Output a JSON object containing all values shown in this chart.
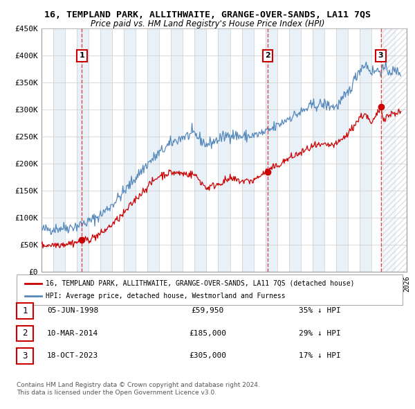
{
  "title": "16, TEMPLAND PARK, ALLITHWAITE, GRANGE-OVER-SANDS, LA11 7QS",
  "subtitle": "Price paid vs. HM Land Registry's House Price Index (HPI)",
  "legend_line1": "16, TEMPLAND PARK, ALLITHWAITE, GRANGE-OVER-SANDS, LA11 7QS (detached house)",
  "legend_line2": "HPI: Average price, detached house, Westmorland and Furness",
  "footer1": "Contains HM Land Registry data © Crown copyright and database right 2024.",
  "footer2": "This data is licensed under the Open Government Licence v3.0.",
  "ylim": [
    0,
    450000
  ],
  "yticks": [
    0,
    50000,
    100000,
    150000,
    200000,
    250000,
    300000,
    350000,
    400000,
    450000
  ],
  "ytick_labels": [
    "£0",
    "£50K",
    "£100K",
    "£150K",
    "£200K",
    "£250K",
    "£300K",
    "£350K",
    "£400K",
    "£450K"
  ],
  "sale_color": "#cc0000",
  "hpi_color": "#5588bb",
  "dashed_color": "#dd3333",
  "bg_stripe_color": "#e8f0f8",
  "transactions": [
    {
      "label": "1",
      "date": "05-JUN-1998",
      "price": 59950,
      "pct": "35% ↓ HPI",
      "x": 1998.43
    },
    {
      "label": "2",
      "date": "10-MAR-2014",
      "price": 185000,
      "pct": "29% ↓ HPI",
      "x": 2014.19
    },
    {
      "label": "3",
      "date": "18-OCT-2023",
      "price": 305000,
      "pct": "17% ↓ HPI",
      "x": 2023.8
    }
  ],
  "xlim": [
    1995,
    2026
  ],
  "background_color": "#ffffff",
  "grid_color": "#cccccc"
}
